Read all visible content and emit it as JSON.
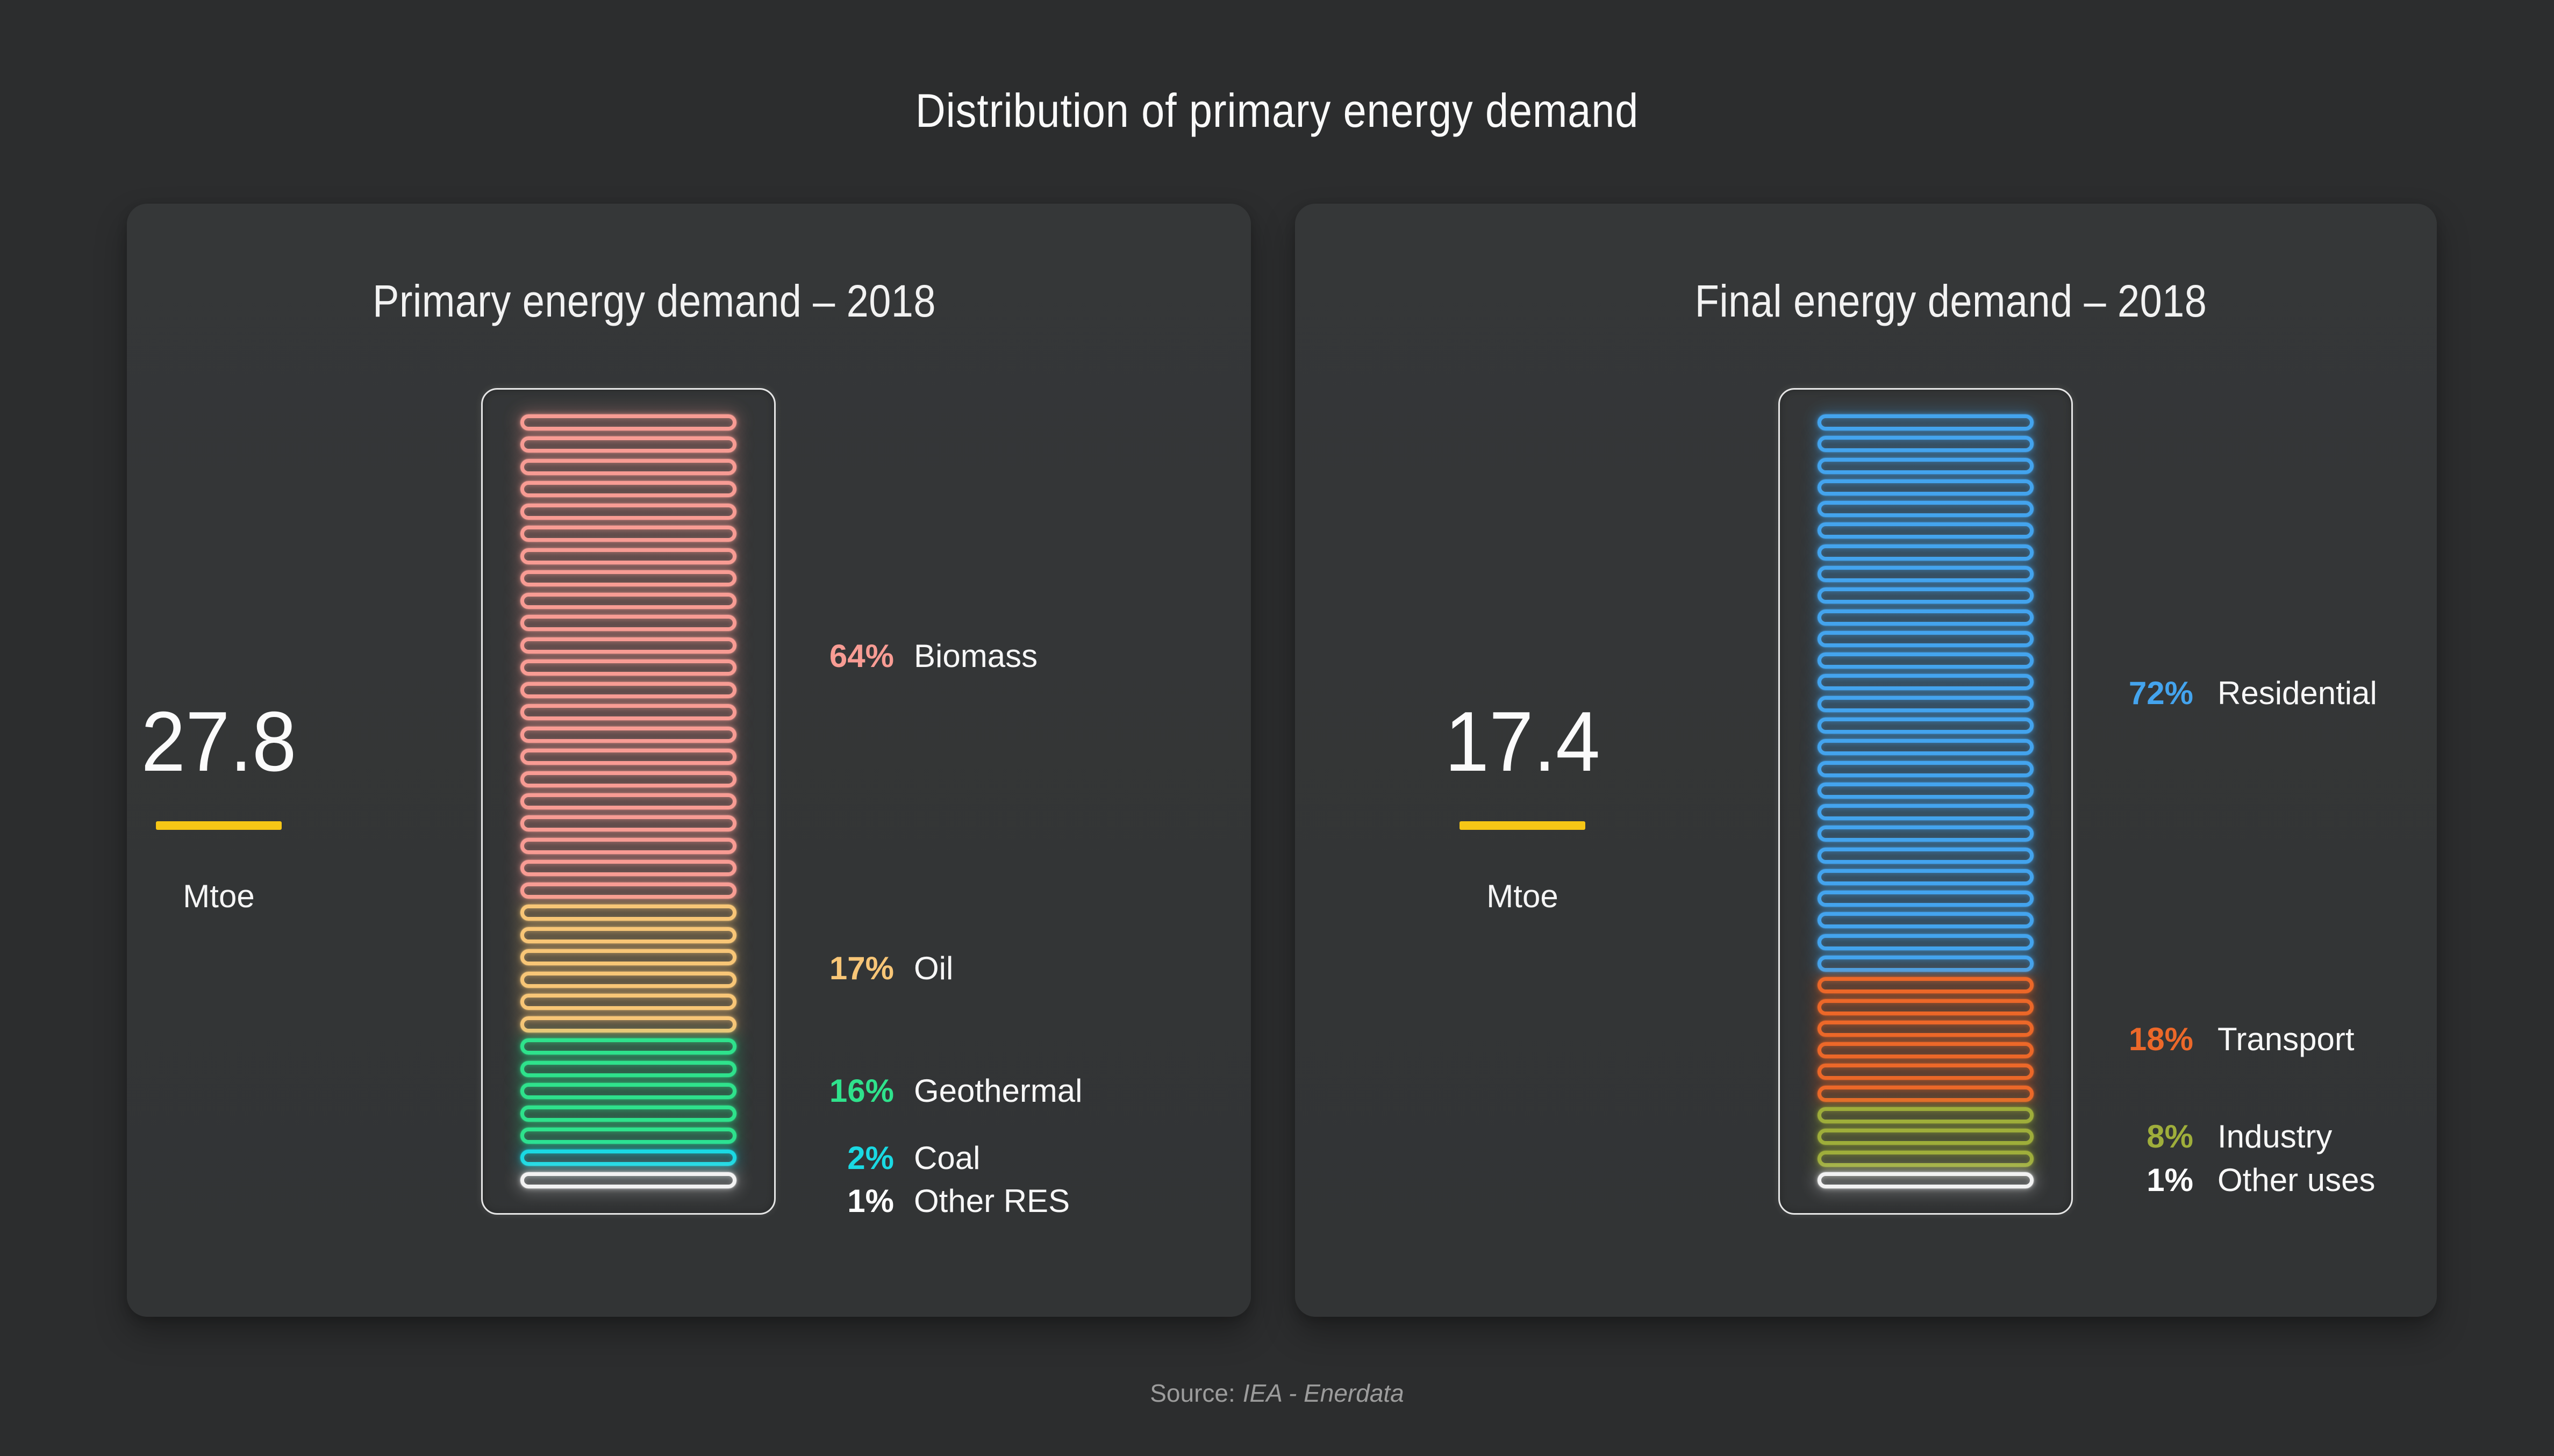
{
  "title": "Distribution of primary energy demand",
  "source": {
    "prefix": "Source:",
    "name": "IEA - Enerdata"
  },
  "colors": {
    "background": "#2C2D2E",
    "card": "#343637",
    "accent_yellow": "#F6C616",
    "frame_border": "#E6E6E6",
    "text": "#FAFAFA",
    "muted_text": "#9C9C9C"
  },
  "panels": [
    {
      "title": "Primary energy demand – 2018",
      "total_value": "27.8",
      "total_unit": "Mtoe",
      "groups": [
        {
          "pct": "64%",
          "label": "Biomass",
          "color": "#F89C94",
          "label_color": "#F89C94",
          "count": 22
        },
        {
          "pct": "17%",
          "label": "Oil",
          "color": "#F8C677",
          "label_color": "#F8C677",
          "count": 6
        },
        {
          "pct": "16%",
          "label": "Geothermal",
          "color": "#2FE28C",
          "label_color": "#2FE28C",
          "count": 5
        },
        {
          "pct": "2%",
          "label": "Coal",
          "color": "#1AD9E3",
          "label_color": "#1AD9E3",
          "count": 1
        },
        {
          "pct": "1%",
          "label": "Other RES",
          "color": "#F2F2F2",
          "label_color": "#FFFFFF",
          "count": 1
        }
      ]
    },
    {
      "title": "Final energy demand – 2018",
      "total_value": "17.4",
      "total_unit": "Mtoe",
      "groups": [
        {
          "pct": "72%",
          "label": "Residential",
          "color": "#44A4EE",
          "label_color": "#44A4EE",
          "count": 26
        },
        {
          "pct": "18%",
          "label": "Transport",
          "color": "#EC6829",
          "label_color": "#EC6829",
          "count": 6
        },
        {
          "pct": "8%",
          "label": "Industry",
          "color": "#9FAE3B",
          "label_color": "#9FAE3B",
          "count": 3
        },
        {
          "pct": "1%",
          "label": "Other uses",
          "color": "#F2F2F2",
          "label_color": "#FFFFFF",
          "count": 1
        }
      ]
    }
  ],
  "chart_data": [
    {
      "type": "bar",
      "subtype": "stacked-neon-tube-column",
      "title": "Primary energy demand – 2018",
      "total": 27.8,
      "total_unit": "Mtoe",
      "categories": [
        "Biomass",
        "Oil",
        "Geothermal",
        "Coal",
        "Other RES"
      ],
      "values": [
        64,
        17,
        16,
        2,
        1
      ],
      "value_unit": "%",
      "colors": [
        "#F89C94",
        "#F8C677",
        "#2FE28C",
        "#1AD9E3",
        "#F2F2F2"
      ],
      "segment_counts": [
        22,
        6,
        5,
        1,
        1
      ],
      "legend_position": "right",
      "grid": false
    },
    {
      "type": "bar",
      "subtype": "stacked-neon-tube-column",
      "title": "Final energy demand – 2018",
      "total": 17.4,
      "total_unit": "Mtoe",
      "categories": [
        "Residential",
        "Transport",
        "Industry",
        "Other uses"
      ],
      "values": [
        72,
        18,
        8,
        1
      ],
      "value_unit": "%",
      "colors": [
        "#44A4EE",
        "#EC6829",
        "#9FAE3B",
        "#F2F2F2"
      ],
      "segment_counts": [
        26,
        6,
        3,
        1
      ],
      "legend_position": "right",
      "grid": false
    }
  ]
}
